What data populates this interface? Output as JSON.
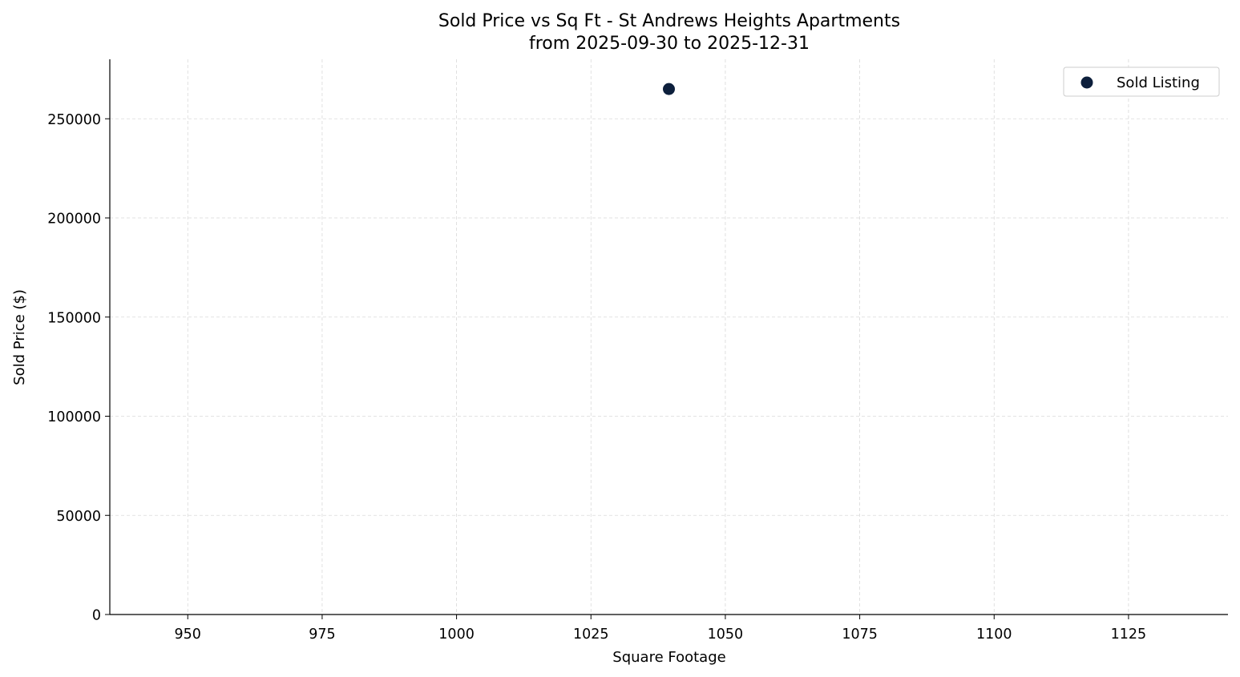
{
  "chart_data": {
    "type": "scatter",
    "title": "Sold Price vs Sq Ft - St Andrews Heights Apartments",
    "subtitle": "from 2025-09-30 to 2025-12-31",
    "xlabel": "Square Footage",
    "ylabel": "Sold Price ($)",
    "xlim": [
      935.5,
      1143.5
    ],
    "ylim": [
      0,
      280000
    ],
    "x_ticks": [
      950,
      975,
      1000,
      1025,
      1050,
      1075,
      1100,
      1125
    ],
    "y_ticks": [
      0,
      50000,
      100000,
      150000,
      200000,
      250000
    ],
    "grid": true,
    "legend_position": "top-right",
    "series": [
      {
        "name": "Sold Listing",
        "color": "#0d1f3c",
        "points": [
          {
            "x": 1039.5,
            "y": 265000
          }
        ]
      }
    ]
  }
}
